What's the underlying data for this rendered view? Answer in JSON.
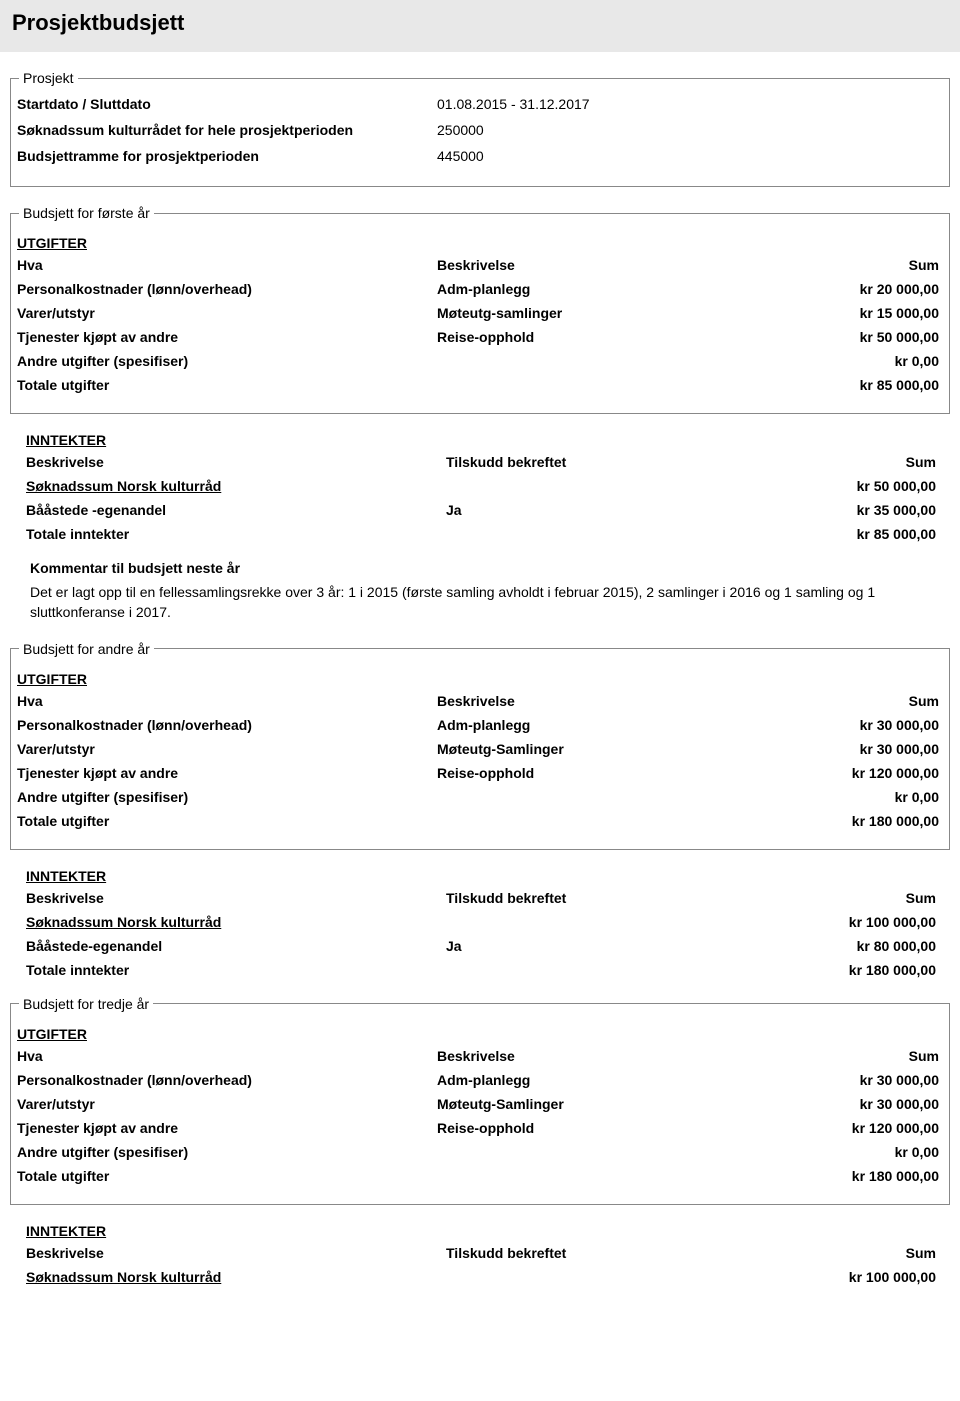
{
  "page_title": "Prosjektbudsjett",
  "prosjekt": {
    "legend": "Prosjekt",
    "rows": [
      {
        "label": "Startdato / Sluttdato",
        "value": "01.08.2015 - 31.12.2017"
      },
      {
        "label": "Søknadssum kulturrådet for hele prosjektperioden",
        "value": "250000"
      },
      {
        "label": "Budsjettramme for prosjektperioden",
        "value": "445000"
      }
    ]
  },
  "labels": {
    "utgifter": "UTGIFTER",
    "inntekter": "INNTEKTER",
    "hva": "Hva",
    "beskrivelse": "Beskrivelse",
    "sum": "Sum",
    "tilskudd_bekreftet": "Tilskudd bekreftet"
  },
  "year1": {
    "legend": "Budsjett for første år",
    "utgifter": [
      {
        "hva": "Personalkostnader (lønn/overhead)",
        "besk": "Adm-planlegg",
        "sum": "kr 20 000,00"
      },
      {
        "hva": "Varer/utstyr",
        "besk": "Møteutg-samlinger",
        "sum": "kr 15 000,00"
      },
      {
        "hva": "Tjenester kjøpt av andre",
        "besk": "Reise-opphold",
        "sum": "kr 50 000,00"
      },
      {
        "hva": "Andre utgifter (spesifiser)",
        "besk": "",
        "sum": "kr 0,00"
      },
      {
        "hva": "Totale utgifter",
        "besk": "",
        "sum": "kr 85 000,00"
      }
    ],
    "inntekter": [
      {
        "besk": "Søknadssum Norsk kulturråd",
        "tb": "",
        "sum": "kr 50 000,00",
        "link": true
      },
      {
        "besk": "Bååstede -egenandel",
        "tb": "Ja",
        "sum": "kr 35 000,00"
      },
      {
        "besk": "Totale inntekter",
        "tb": "",
        "sum": "kr 85 000,00"
      }
    ]
  },
  "comment": {
    "title": "Kommentar til budsjett neste år",
    "text": "Det er lagt opp til en fellessamlingsrekke over 3 år: 1 i 2015 (første samling avholdt i februar 2015), 2 samlinger i 2016 og 1 samling og 1 sluttkonferanse i 2017."
  },
  "year2": {
    "legend": "Budsjett for andre år",
    "utgifter": [
      {
        "hva": "Personalkostnader (lønn/overhead)",
        "besk": "Adm-planlegg",
        "sum": "kr 30 000,00"
      },
      {
        "hva": "Varer/utstyr",
        "besk": "Møteutg-Samlinger",
        "sum": "kr 30 000,00"
      },
      {
        "hva": "Tjenester kjøpt av andre",
        "besk": "Reise-opphold",
        "sum": "kr 120 000,00"
      },
      {
        "hva": "Andre utgifter (spesifiser)",
        "besk": "",
        "sum": "kr 0,00"
      },
      {
        "hva": "Totale utgifter",
        "besk": "",
        "sum": "kr 180 000,00"
      }
    ],
    "inntekter": [
      {
        "besk": "Søknadssum Norsk kulturråd",
        "tb": "",
        "sum": "kr 100 000,00",
        "link": true
      },
      {
        "besk": "Bååstede-egenandel",
        "tb": "Ja",
        "sum": "kr 80 000,00"
      },
      {
        "besk": "Totale inntekter",
        "tb": "",
        "sum": "kr 180 000,00"
      }
    ]
  },
  "year3": {
    "legend": "Budsjett for tredje år",
    "utgifter": [
      {
        "hva": "Personalkostnader (lønn/overhead)",
        "besk": "Adm-planlegg",
        "sum": "kr 30 000,00"
      },
      {
        "hva": "Varer/utstyr",
        "besk": "Møteutg-Samlinger",
        "sum": "kr 30 000,00"
      },
      {
        "hva": "Tjenester kjøpt av andre",
        "besk": "Reise-opphold",
        "sum": "kr 120 000,00"
      },
      {
        "hva": "Andre utgifter (spesifiser)",
        "besk": "",
        "sum": "kr 0,00"
      },
      {
        "hva": "Totale utgifter",
        "besk": "",
        "sum": "kr 180 000,00"
      }
    ],
    "inntekter": [
      {
        "besk": "Søknadssum Norsk kulturråd",
        "tb": "",
        "sum": "kr 100 000,00",
        "link": true
      }
    ]
  }
}
